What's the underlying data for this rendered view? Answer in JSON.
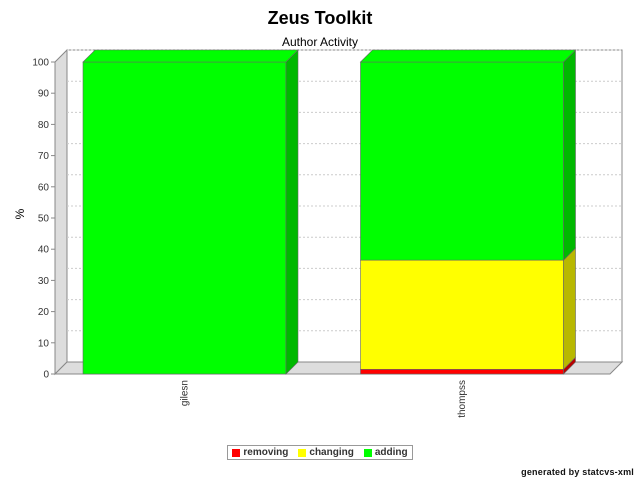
{
  "header": {
    "title": "Zeus Toolkit",
    "subtitle": "Author Activity"
  },
  "footer": {
    "text": "generated by statcvs-xml"
  },
  "legend": [
    {
      "label": "removing",
      "color": "#ff0000"
    },
    {
      "label": "changing",
      "color": "#ffff00"
    },
    {
      "label": "adding",
      "color": "#00ff00"
    }
  ],
  "chart_data": {
    "type": "bar",
    "stacked": true,
    "title": "Zeus Toolkit",
    "subtitle": "Author Activity",
    "xlabel": "",
    "ylabel": "%",
    "ylim": [
      0,
      100
    ],
    "yticks": [
      0,
      10,
      20,
      30,
      40,
      50,
      60,
      70,
      80,
      90,
      100
    ],
    "categories": [
      "gilesn",
      "thompss"
    ],
    "series": [
      {
        "name": "removing",
        "color": "#ff0000",
        "values": [
          0,
          1.5
        ]
      },
      {
        "name": "changing",
        "color": "#ffff00",
        "values": [
          0,
          35
        ]
      },
      {
        "name": "adding",
        "color": "#00ff00",
        "values": [
          100,
          63.5
        ]
      }
    ],
    "grid": true,
    "legend_position": "bottom"
  }
}
